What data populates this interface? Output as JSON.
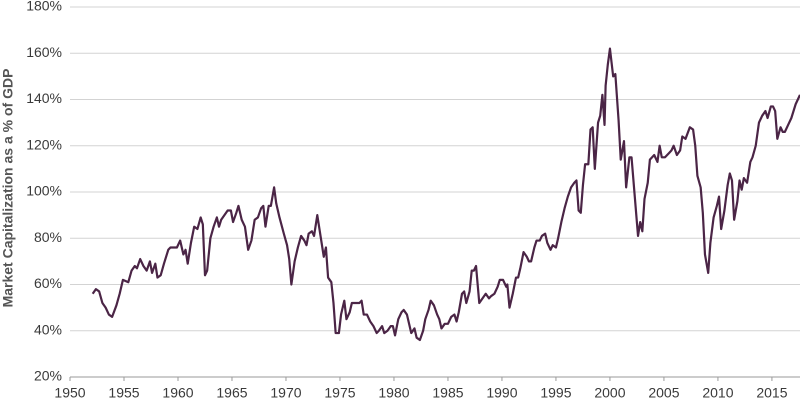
{
  "chart_data": {
    "type": "line",
    "y_label": "Market Capitalization as a % of GDP",
    "xlim": [
      1950,
      2017.6
    ],
    "xticks": [
      1950,
      1955,
      1960,
      1965,
      1970,
      1975,
      1980,
      1985,
      1990,
      1995,
      2000,
      2005,
      2010,
      2015
    ],
    "ylim": [
      20,
      180
    ],
    "yticks": [
      {
        "value": 20,
        "label": "20%"
      },
      {
        "value": 40,
        "label": "40%"
      },
      {
        "value": 60,
        "label": "60%"
      },
      {
        "value": 80,
        "label": "80%"
      },
      {
        "value": 100,
        "label": "100%"
      },
      {
        "value": 120,
        "label": "120%"
      },
      {
        "value": 140,
        "label": "140%"
      },
      {
        "value": 160,
        "label": "160%"
      },
      {
        "value": 180,
        "label": "180%"
      }
    ],
    "grid": true,
    "color": "#4b2546",
    "x": [
      1952.1,
      1952.4,
      1952.7,
      1953.0,
      1953.3,
      1953.6,
      1953.9,
      1954.3,
      1954.6,
      1954.9,
      1955.4,
      1955.7,
      1956.0,
      1956.2,
      1956.5,
      1956.8,
      1957.1,
      1957.4,
      1957.6,
      1957.9,
      1958.1,
      1958.4,
      1958.7,
      1959.1,
      1959.3,
      1959.6,
      1959.9,
      1960.2,
      1960.5,
      1960.7,
      1960.9,
      1961.2,
      1961.5,
      1961.8,
      1962.1,
      1962.3,
      1962.5,
      1962.7,
      1963.0,
      1963.3,
      1963.6,
      1963.8,
      1964.0,
      1964.3,
      1964.6,
      1964.9,
      1965.1,
      1965.4,
      1965.6,
      1965.9,
      1966.2,
      1966.5,
      1966.8,
      1967.1,
      1967.4,
      1967.7,
      1967.9,
      1968.1,
      1968.4,
      1968.6,
      1968.9,
      1969.1,
      1969.4,
      1969.8,
      1970.1,
      1970.3,
      1970.5,
      1970.8,
      1971.1,
      1971.4,
      1971.7,
      1971.9,
      1972.1,
      1972.4,
      1972.6,
      1972.9,
      1973.2,
      1973.5,
      1973.7,
      1973.9,
      1974.2,
      1974.4,
      1974.6,
      1974.9,
      1975.1,
      1975.4,
      1975.6,
      1975.9,
      1976.1,
      1976.4,
      1976.8,
      1977.0,
      1977.2,
      1977.5,
      1977.8,
      1978.1,
      1978.4,
      1978.6,
      1978.9,
      1979.1,
      1979.4,
      1979.7,
      1979.9,
      1980.1,
      1980.4,
      1980.7,
      1980.9,
      1981.2,
      1981.4,
      1981.6,
      1981.9,
      1982.1,
      1982.4,
      1982.7,
      1982.9,
      1983.2,
      1983.4,
      1983.7,
      1984.0,
      1984.2,
      1984.4,
      1984.7,
      1985.0,
      1985.3,
      1985.6,
      1985.8,
      1986.0,
      1986.3,
      1986.5,
      1986.7,
      1987.0,
      1987.2,
      1987.4,
      1987.6,
      1987.9,
      1988.2,
      1988.5,
      1988.8,
      1989.0,
      1989.3,
      1989.6,
      1989.8,
      1990.1,
      1990.4,
      1990.5,
      1990.7,
      1991.0,
      1991.3,
      1991.5,
      1991.7,
      1992.0,
      1992.3,
      1992.5,
      1992.7,
      1993.0,
      1993.2,
      1993.5,
      1993.7,
      1994.0,
      1994.2,
      1994.5,
      1994.7,
      1995.0,
      1995.2,
      1995.5,
      1995.8,
      1996.1,
      1996.4,
      1996.7,
      1996.9,
      1997.1,
      1997.3,
      1997.5,
      1997.7,
      1998.0,
      1998.2,
      1998.4,
      1998.6,
      1998.9,
      1999.1,
      1999.3,
      1999.5,
      1999.6,
      1999.8,
      2000.0,
      2000.3,
      2000.5,
      2000.8,
      2001.0,
      2001.3,
      2001.5,
      2001.8,
      2002.0,
      2002.3,
      2002.6,
      2002.8,
      2003.0,
      2003.2,
      2003.5,
      2003.7,
      2004.1,
      2004.4,
      2004.6,
      2004.8,
      2005.1,
      2005.5,
      2005.7,
      2005.9,
      2006.2,
      2006.5,
      2006.7,
      2007.0,
      2007.4,
      2007.7,
      2007.9,
      2008.1,
      2008.4,
      2008.6,
      2008.8,
      2009.1,
      2009.3,
      2009.6,
      2009.9,
      2010.1,
      2010.3,
      2010.6,
      2010.9,
      2011.1,
      2011.3,
      2011.5,
      2011.8,
      2012.0,
      2012.2,
      2012.4,
      2012.7,
      2013.0,
      2013.2,
      2013.5,
      2013.8,
      2014.1,
      2014.4,
      2014.6,
      2014.9,
      2015.1,
      2015.3,
      2015.5,
      2015.8,
      2016.0,
      2016.2,
      2016.5,
      2016.8,
      2017.2,
      2017.4,
      2017.6
    ],
    "values": [
      56,
      58,
      57,
      52,
      50,
      47,
      46,
      51,
      56,
      62,
      61,
      66,
      68,
      67,
      71,
      68,
      66,
      70,
      65,
      69,
      63,
      64,
      69,
      75,
      76,
      76,
      76,
      79,
      73,
      75,
      69,
      78,
      85,
      84,
      89,
      86,
      64,
      66,
      80,
      85,
      89,
      85,
      88,
      90,
      92,
      92,
      87,
      91,
      94,
      88,
      85,
      75,
      79,
      88,
      89,
      93,
      94,
      85,
      94,
      94,
      102,
      95,
      89,
      82,
      77,
      71,
      60,
      70,
      76,
      81,
      79,
      77,
      82,
      83,
      81,
      90,
      81,
      72,
      76,
      63,
      61,
      52,
      39,
      39,
      47,
      53,
      45,
      48,
      52,
      52,
      52,
      53,
      47,
      47,
      44,
      42,
      39,
      40,
      42,
      39,
      40,
      42,
      42,
      38,
      45,
      48,
      49,
      47,
      43,
      39,
      41,
      37,
      36,
      40,
      45,
      49,
      53,
      51,
      47,
      45,
      41,
      43,
      43,
      46,
      47,
      44,
      48,
      56,
      57,
      52,
      57,
      66,
      66,
      68,
      52,
      54,
      56,
      54,
      55,
      56,
      59,
      62,
      62,
      59,
      60,
      50,
      56,
      63,
      63,
      67,
      74,
      72,
      70,
      70,
      76,
      79,
      79,
      81,
      82,
      78,
      75,
      77,
      76,
      80,
      87,
      93,
      98,
      102,
      104,
      105,
      92,
      91,
      103,
      112,
      112,
      127,
      128,
      110,
      130,
      133,
      142,
      129,
      146,
      155,
      162,
      150,
      151,
      131,
      114,
      122,
      102,
      115,
      115,
      98,
      81,
      87,
      83,
      97,
      104,
      114,
      116,
      113,
      120,
      115,
      115,
      117,
      118,
      120,
      116,
      118,
      124,
      123,
      128,
      127,
      120,
      107,
      102,
      91,
      73,
      65,
      78,
      89,
      94,
      98,
      84,
      92,
      103,
      108,
      105,
      88,
      96,
      105,
      101,
      106,
      104,
      113,
      115,
      120,
      130,
      133,
      135,
      132,
      137,
      137,
      135,
      123,
      128,
      126,
      126,
      129,
      132,
      138,
      140,
      142
    ]
  }
}
